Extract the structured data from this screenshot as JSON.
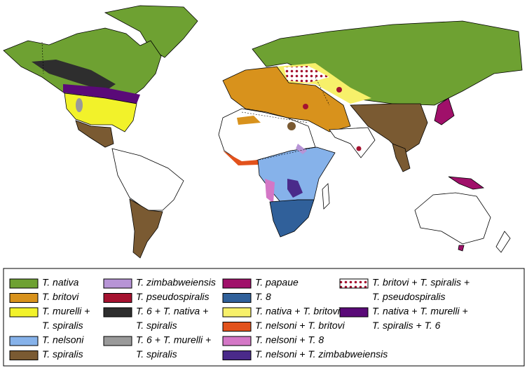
{
  "legend": {
    "columns": [
      [
        {
          "lines": [
            "T. nativa"
          ],
          "color": "#6ea132"
        },
        {
          "lines": [
            "T. britovi"
          ],
          "color": "#d8921c"
        },
        {
          "lines": [
            "T. murelli +",
            "T. spiralis"
          ],
          "color": "#f2f22a"
        },
        {
          "lines": [
            "T. nelsoni"
          ],
          "color": "#86b2ea"
        },
        {
          "lines": [
            "T. spiralis"
          ],
          "color": "#7a5a32"
        }
      ],
      [
        {
          "lines": [
            "T. zimbabweiensis"
          ],
          "color": "#b794d6"
        },
        {
          "lines": [
            "T. pseudospiralis"
          ],
          "color": "#a51230"
        },
        {
          "lines": [
            "T. 6 + T. nativa +",
            "T. spiralis"
          ],
          "color": "#2e2e2e"
        },
        {
          "lines": [
            "T. 6 + T. murelli +",
            "T. spiralis"
          ],
          "color": "#9a9a9a"
        }
      ],
      [
        {
          "lines": [
            "T. papaue"
          ],
          "color": "#a0106a"
        },
        {
          "lines": [
            "T. 8"
          ],
          "color": "#30609a"
        },
        {
          "lines": [
            "T. nativa + T. britovi"
          ],
          "color": "#f7f06a"
        },
        {
          "lines": [
            "T. nelsoni + T. britovi"
          ],
          "color": "#e2521c"
        },
        {
          "lines": [
            "T. nelsoni + T. 8"
          ],
          "color": "#d477c6"
        },
        {
          "lines": [
            "T. nelsoni + T. zimbabweiensis"
          ],
          "color": "#4a2a8a"
        }
      ],
      [
        {
          "lines": [
            "T. britovi + T. spiralis +",
            "T. pseudospiralis"
          ],
          "color": "#a51230",
          "pattern": "dots"
        },
        {
          "lines": [
            "T. nativa + T. murelli +",
            "T. spiralis + T. 6"
          ],
          "color": "#5a0a78"
        }
      ]
    ]
  }
}
